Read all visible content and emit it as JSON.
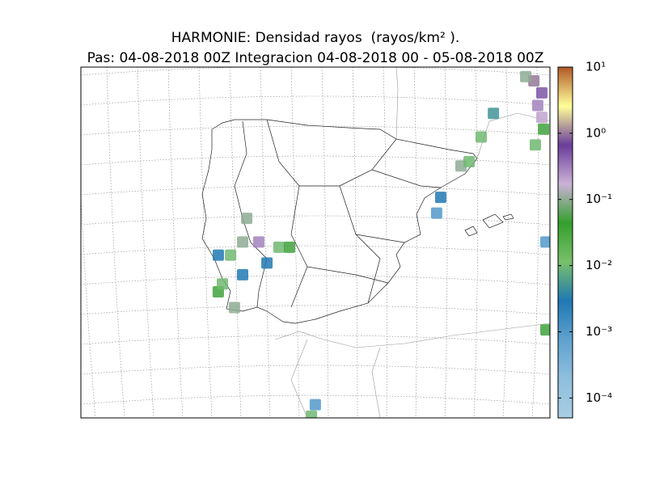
{
  "chart_data": {
    "type": "map",
    "title": "HARMONIE: Densidad rayos  (rayos/km² ).",
    "subtitle": "Pas: 04-08-2018 00Z Integracion 04-08-2018 00 - 05-08-2018 00Z",
    "points": {
      "lon": [
        -7.43,
        -7.62,
        -6.87,
        -5.93,
        -5.44,
        -8.18,
        -8.75,
        -6.49,
        -8.75,
        -8.0,
        -8.56,
        -7.62,
        2.53,
        2.91,
        3.47,
        4.04,
        1.59,
        1.4,
        5.92,
        6.29,
        6.1,
        6.29,
        5.54,
        5.99,
        6.37,
        6.48,
        6.48,
        -4.24,
        -4.42
      ],
      "lat": [
        40.0,
        39.1,
        39.1,
        38.9,
        38.9,
        38.6,
        38.6,
        38.3,
        37.2,
        36.6,
        37.5,
        37.85,
        42.0,
        42.16,
        43.1,
        44.0,
        40.8,
        40.2,
        45.24,
        44.78,
        44.3,
        43.85,
        45.4,
        42.8,
        43.4,
        39.1,
        35.75,
        32.9,
        32.46
      ],
      "values": [
        0.1,
        0.1,
        0.3,
        0.01,
        0.05,
        0.01,
        0.003,
        0.003,
        0.05,
        0.1,
        0.01,
        0.003,
        0.1,
        0.01,
        0.01,
        0.005,
        0.003,
        0.001,
        1,
        0.5,
        0.3,
        0.2,
        0.1,
        0.01,
        0.05,
        0.001,
        0.05,
        0.001,
        0.01
      ]
    },
    "colorbar": {
      "scale": "log",
      "lim": [
        5e-05,
        10
      ],
      "ticks": [
        {
          "value": 10,
          "label": "10¹"
        },
        {
          "value": 1,
          "label": "10⁰"
        },
        {
          "value": 0.1,
          "label": "10⁻¹"
        },
        {
          "value": 0.01,
          "label": "10⁻²"
        },
        {
          "value": 0.001,
          "label": "10⁻³"
        },
        {
          "value": 0.0001,
          "label": "10⁻⁴"
        }
      ],
      "colors": [
        "#a6cee3",
        "#8fbfdd",
        "#5fa2cf",
        "#1f78b4",
        "#78c06a",
        "#33a02c",
        "#cab2d6",
        "#6a3d9a",
        "#ffff99",
        "#b15928"
      ]
    }
  }
}
